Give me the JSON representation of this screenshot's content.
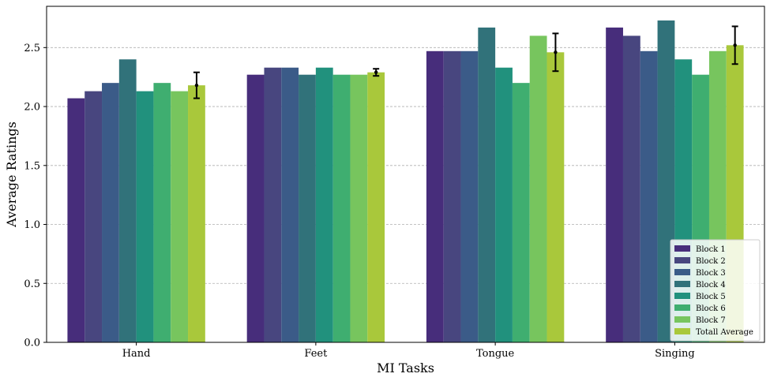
{
  "chart_data": {
    "type": "bar",
    "xlabel": "MI Tasks",
    "ylabel": "Average Ratings",
    "categories": [
      "Hand",
      "Feet",
      "Tongue",
      "Singing"
    ],
    "ylim": [
      0,
      2.85
    ],
    "yticks": [
      "0.0",
      "0.5",
      "1.0",
      "1.5",
      "2.0",
      "2.5"
    ],
    "ytick_values": [
      0,
      0.5,
      1.0,
      1.5,
      2.0,
      2.5
    ],
    "grid": "horizontal dashed",
    "legend_position": "lower-right",
    "series": [
      {
        "name": "Block 1",
        "color": "#472d7b",
        "values": [
          2.07,
          2.27,
          2.47,
          2.67
        ]
      },
      {
        "name": "Block 2",
        "color": "#48467f",
        "values": [
          2.13,
          2.33,
          2.47,
          2.6
        ]
      },
      {
        "name": "Block 3",
        "color": "#3b5b88",
        "values": [
          2.2,
          2.33,
          2.47,
          2.47
        ]
      },
      {
        "name": "Block 4",
        "color": "#31727a",
        "values": [
          2.4,
          2.27,
          2.67,
          2.73
        ]
      },
      {
        "name": "Block 5",
        "color": "#21917d",
        "values": [
          2.13,
          2.33,
          2.33,
          2.4
        ]
      },
      {
        "name": "Block 6",
        "color": "#3fae70",
        "values": [
          2.2,
          2.27,
          2.2,
          2.27
        ]
      },
      {
        "name": "Block 7",
        "color": "#77c55e",
        "values": [
          2.13,
          2.27,
          2.6,
          2.47
        ]
      },
      {
        "name": "Totall Average",
        "color": "#a9c83b",
        "values": [
          2.18,
          2.29,
          2.46,
          2.52
        ],
        "error": [
          0.11,
          0.03,
          0.16,
          0.16
        ]
      }
    ]
  }
}
